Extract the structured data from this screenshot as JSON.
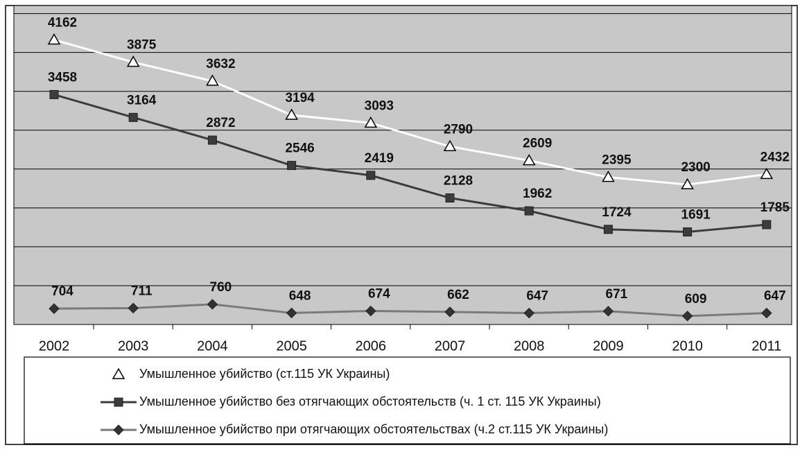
{
  "chart_data": {
    "type": "line",
    "categories": [
      "2002",
      "2003",
      "2004",
      "2005",
      "2006",
      "2007",
      "2008",
      "2009",
      "2010",
      "2011"
    ],
    "series": [
      {
        "name": "Умышленное убийство (ст.115 УК Украины)",
        "color": "#ffffff",
        "marker": "triangle",
        "values": [
          4162,
          3875,
          3632,
          3194,
          3093,
          2790,
          2609,
          2395,
          2300,
          2432
        ]
      },
      {
        "name": "Умышленное убийство без отягчающих обстоятельств (ч. 1 ст. 115 УК Украины)",
        "color": "#3c3c3c",
        "marker": "square",
        "values": [
          3458,
          3164,
          2872,
          2546,
          2419,
          2128,
          1962,
          1724,
          1691,
          1785
        ]
      },
      {
        "name": "Умышленное убийство при отягчающих обстоятельствах (ч.2 ст.115 УК Украины)",
        "color": "#7a7a7a",
        "marker": "diamond",
        "values": [
          704,
          711,
          760,
          648,
          674,
          662,
          647,
          671,
          609,
          647
        ]
      }
    ],
    "ylim": [
      500,
      4600
    ],
    "yticks": [
      500,
      1000,
      1500,
      2000,
      2500,
      3000,
      3500,
      4000,
      4500
    ],
    "grid": true,
    "legend": "bottom"
  }
}
